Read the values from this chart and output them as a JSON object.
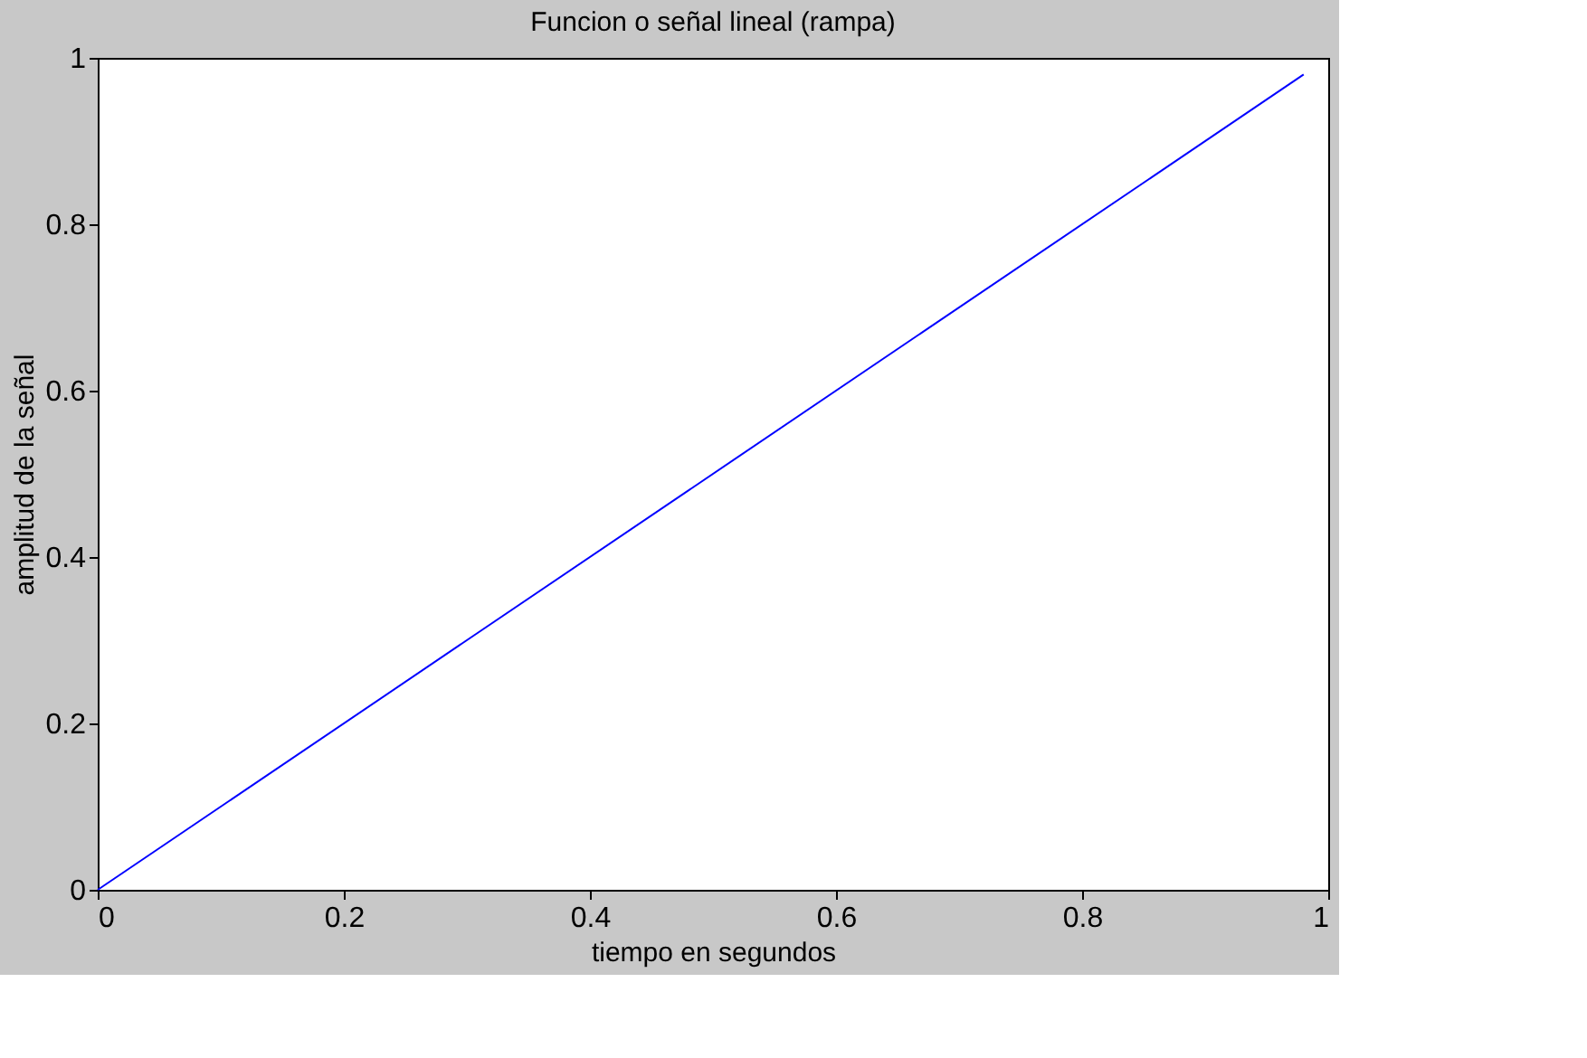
{
  "chart_data": {
    "type": "line",
    "title": "Funcion o señal lineal (rampa)",
    "xlabel": "tiempo en segundos",
    "ylabel": "amplitud de la señal",
    "x": [
      0,
      0.98
    ],
    "series": [
      {
        "color": "#0000ff",
        "values": [
          0,
          0.98
        ]
      }
    ],
    "xlim": [
      0,
      1
    ],
    "xticks": [
      0,
      0.2,
      0.4,
      0.6,
      0.8,
      1
    ],
    "ylim": [
      0,
      1
    ],
    "yticks": [
      0,
      0.2,
      0.4,
      0.6,
      0.8,
      1
    ],
    "grid": false,
    "legend": false,
    "marker": "none",
    "line_style": "solid"
  }
}
